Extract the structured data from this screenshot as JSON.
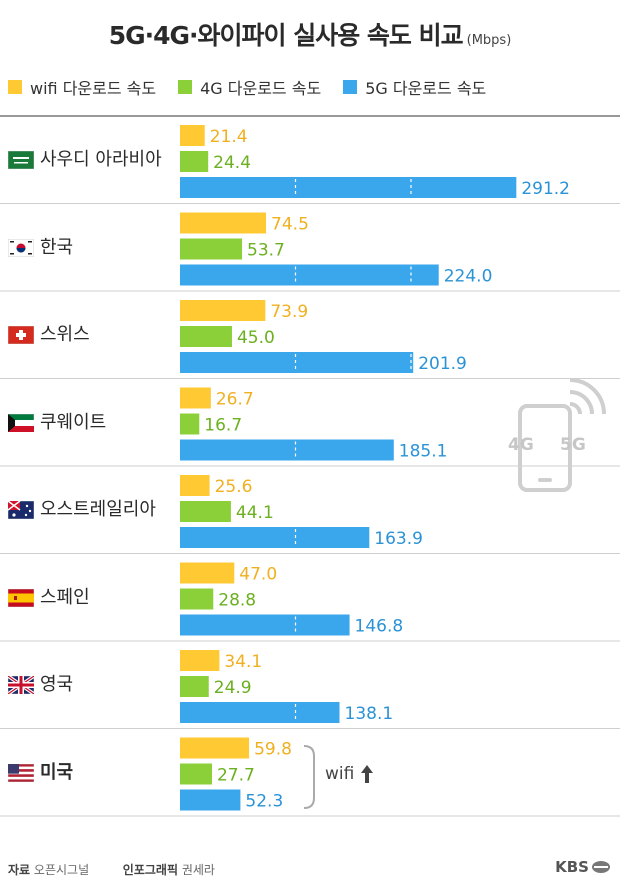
{
  "title": "5G·4G·와이파이 실사용 속도 비교",
  "unit": "(Mbps)",
  "legend": [
    {
      "label": "wifi 다운로드 속도",
      "color": "#ffc933"
    },
    {
      "label": "4G 다운로드 속도",
      "color": "#8cd039"
    },
    {
      "label": "5G 다운로드 속도",
      "color": "#3aa6ec"
    }
  ],
  "chart_data": {
    "type": "bar",
    "orientation": "horizontal",
    "categories": [
      "사우디 아라비아",
      "한국",
      "스위스",
      "쿠웨이트",
      "오스트레일리아",
      "스페인",
      "영국",
      "미국"
    ],
    "series": [
      {
        "name": "wifi 다운로드 속도",
        "values": [
          21.4,
          74.5,
          73.9,
          26.7,
          25.6,
          47.0,
          34.1,
          59.8
        ]
      },
      {
        "name": "4G 다운로드 속도",
        "values": [
          24.4,
          53.7,
          45.0,
          16.7,
          44.1,
          28.8,
          24.9,
          27.7
        ]
      },
      {
        "name": "5G 다운로드 속도",
        "values": [
          291.2,
          224.0,
          201.9,
          185.1,
          163.9,
          146.8,
          138.1,
          52.3
        ]
      }
    ],
    "colors": {
      "wifi": "#ffc933",
      "4g": "#8cd039",
      "5g": "#3aa6ec",
      "label_wifi": "#f0b020",
      "label_4g": "#6bb020",
      "label_5g": "#2a93d6"
    },
    "highlight": "미국"
  },
  "annotation": {
    "text": "wifi"
  },
  "icon": {
    "name": "phone-signal-icon",
    "labels": [
      "4G",
      "5G"
    ]
  },
  "footer": {
    "source_label": "자료",
    "source": "오픈시그널",
    "graphic_label": "인포그래픽",
    "graphic": "권세라",
    "brand": "KBS"
  }
}
